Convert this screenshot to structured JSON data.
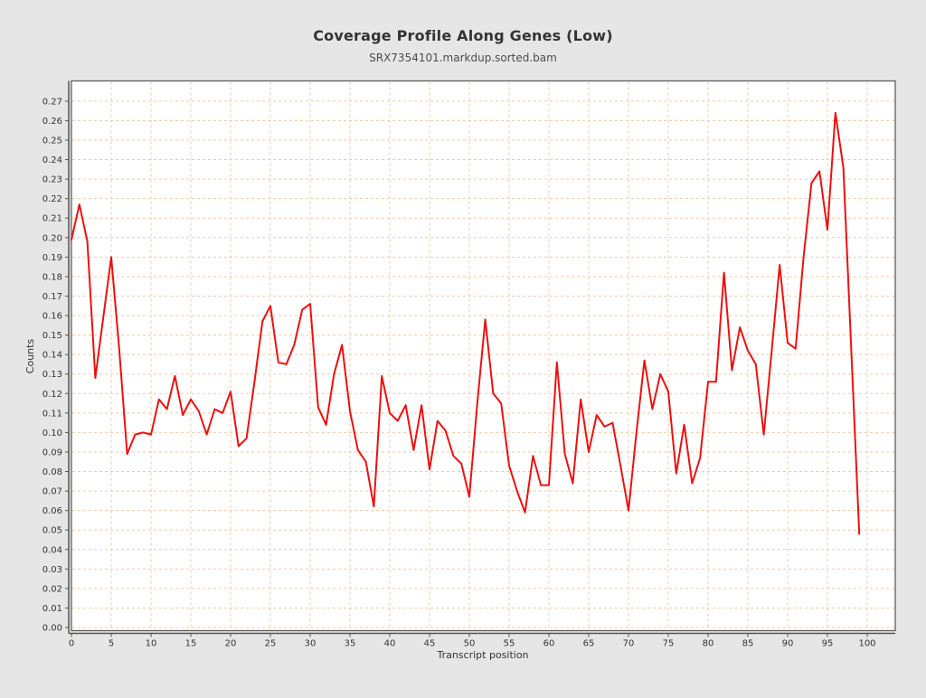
{
  "title": "Coverage Profile Along Genes (Low)",
  "subtitle": "SRX7354101.markdup.sorted.bam",
  "colors": {
    "background": "#e6e6e6",
    "plot_background": "#ffffff",
    "plot_border": "#5f5f5f",
    "axis_line": "#545454",
    "gridline": "#f5c9a2",
    "tick_label": "#333333",
    "series_red": "#ee1010"
  },
  "chart_data": {
    "type": "line",
    "title": "Coverage Profile Along Genes (Low)",
    "subtitle": "SRX7354101.markdup.sorted.bam",
    "xlabel": "Transcript position",
    "ylabel": "Counts",
    "grid": true,
    "legend": "none",
    "xlim": [
      0,
      103.5
    ],
    "ylim": [
      0,
      0.2805
    ],
    "x_ticks": [
      0,
      5,
      10,
      15,
      20,
      25,
      30,
      35,
      40,
      45,
      50,
      55,
      60,
      65,
      70,
      75,
      80,
      85,
      90,
      95,
      100
    ],
    "y_ticks": [
      0.0,
      0.01,
      0.02,
      0.03,
      0.04,
      0.05,
      0.06,
      0.07,
      0.08,
      0.09,
      0.1,
      0.11,
      0.12,
      0.13,
      0.14,
      0.15,
      0.16,
      0.17,
      0.18,
      0.19,
      0.2,
      0.21,
      0.22,
      0.23,
      0.24,
      0.25,
      0.26,
      0.27
    ],
    "x_start": 0,
    "x_step": 1,
    "series": [
      {
        "name": "SRX7354101.markdup.sorted.bam",
        "color": "#ee1010",
        "values": [
          0.199,
          0.217,
          0.198,
          0.128,
          0.159,
          0.19,
          0.143,
          0.089,
          0.099,
          0.1,
          0.099,
          0.117,
          0.112,
          0.129,
          0.109,
          0.117,
          0.111,
          0.099,
          0.112,
          0.11,
          0.121,
          0.093,
          0.097,
          0.126,
          0.157,
          0.165,
          0.136,
          0.135,
          0.145,
          0.163,
          0.166,
          0.113,
          0.104,
          0.13,
          0.145,
          0.111,
          0.091,
          0.085,
          0.062,
          0.129,
          0.11,
          0.106,
          0.114,
          0.091,
          0.114,
          0.081,
          0.106,
          0.101,
          0.088,
          0.084,
          0.067,
          0.115,
          0.158,
          0.12,
          0.115,
          0.083,
          0.07,
          0.059,
          0.088,
          0.073,
          0.073,
          0.136,
          0.089,
          0.074,
          0.117,
          0.09,
          0.109,
          0.103,
          0.105,
          0.083,
          0.06,
          0.1,
          0.137,
          0.112,
          0.13,
          0.121,
          0.079,
          0.104,
          0.074,
          0.087,
          0.126,
          0.126,
          0.182,
          0.132,
          0.154,
          0.142,
          0.135,
          0.099,
          0.142,
          0.186,
          0.146,
          0.143,
          0.19,
          0.228,
          0.234,
          0.204,
          0.264,
          0.236,
          0.142,
          0.048
        ]
      }
    ]
  }
}
